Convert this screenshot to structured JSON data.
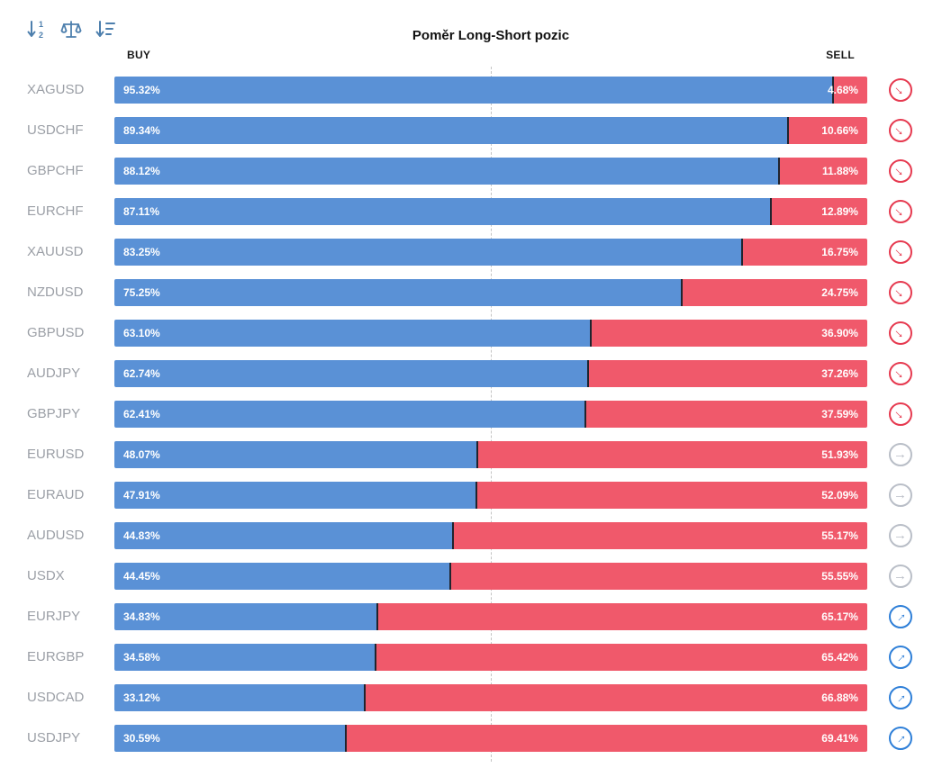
{
  "title": "Poměr Long-Short pozic",
  "columns": {
    "buy_label": "BUY",
    "sell_label": "SELL"
  },
  "toolbar": {
    "icons": [
      "sort-numeric-icon",
      "balance-icon",
      "sort-amount-icon"
    ],
    "icon_color": "#4d7fad"
  },
  "colors": {
    "buy": "#5a91d6",
    "sell": "#f0596b",
    "segment_divider": "#20242e",
    "signal_sell": "#e6394f",
    "signal_neutral": "#b9bec7",
    "signal_buy": "#2e7fd8",
    "pair_label": "#9b9fa6",
    "midline": "#c3c3c3"
  },
  "signal_arrow_glyph": "→",
  "chart_data": {
    "type": "bar",
    "orientation": "horizontal-stacked",
    "title": "Poměr Long-Short pozic",
    "xlim": [
      0,
      100
    ],
    "midline": 50,
    "grid": "dashed-center-line-only",
    "legend_position": "top-as-column-headers",
    "categories": [
      "XAGUSD",
      "USDCHF",
      "GBPCHF",
      "EURCHF",
      "XAUUSD",
      "NZDUSD",
      "GBPUSD",
      "AUDJPY",
      "GBPJPY",
      "EURUSD",
      "EURAUD",
      "AUDUSD",
      "USDX",
      "EURJPY",
      "EURGBP",
      "USDCAD",
      "USDJPY"
    ],
    "series": [
      {
        "name": "BUY",
        "values": [
          95.32,
          89.34,
          88.12,
          87.11,
          83.25,
          75.25,
          63.1,
          62.74,
          62.41,
          48.07,
          47.91,
          44.83,
          44.45,
          34.83,
          34.58,
          33.12,
          30.59
        ]
      },
      {
        "name": "SELL",
        "values": [
          4.68,
          10.66,
          11.88,
          12.89,
          16.75,
          24.75,
          36.9,
          37.26,
          37.59,
          51.93,
          52.09,
          55.17,
          55.55,
          65.17,
          65.42,
          66.88,
          69.41
        ]
      }
    ],
    "signals": [
      "sell",
      "sell",
      "sell",
      "sell",
      "sell",
      "sell",
      "sell",
      "sell",
      "sell",
      "neutral",
      "neutral",
      "neutral",
      "neutral",
      "buy",
      "buy",
      "buy",
      "buy"
    ]
  }
}
